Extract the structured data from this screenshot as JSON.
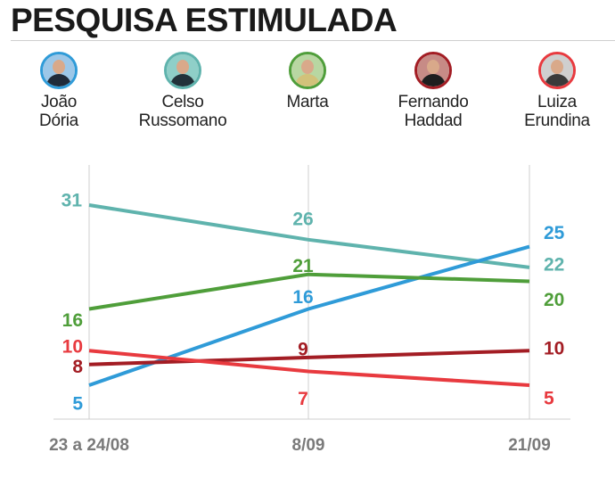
{
  "title": "PESQUISA ESTIMULADA",
  "candidates": [
    {
      "line1": "João",
      "line2": "Dória",
      "color": "#2f9bd8",
      "bg": "#9cc7e8",
      "suit": "#1f2b3a"
    },
    {
      "line1": "Celso",
      "line2": "Russomano",
      "color": "#5fb3ad",
      "bg": "#8fcfc8",
      "suit": "#22323a"
    },
    {
      "line1": "Marta",
      "line2": "",
      "color": "#4f9e3a",
      "bg": "#b8d7a2",
      "suit": "#d2c27a"
    },
    {
      "line1": "Fernando",
      "line2": "Haddad",
      "color": "#a31d24",
      "bg": "#c78b86",
      "suit": "#1e1e1e"
    },
    {
      "line1": "Luiza",
      "line2": "Erundina",
      "color": "#e83a3f",
      "bg": "#cfcfcf",
      "suit": "#3a3a3a"
    }
  ],
  "chart_data": {
    "type": "line",
    "categories": [
      "23 a 24/08",
      "8/09",
      "21/09"
    ],
    "ylim": [
      0,
      35
    ],
    "grid": "vertical",
    "series": [
      {
        "name": "Celso Russomano",
        "values": [
          31,
          26,
          22
        ],
        "color": "#5fb3ad"
      },
      {
        "name": "João Dória",
        "values": [
          5,
          16,
          25
        ],
        "color": "#2f9bd8"
      },
      {
        "name": "Marta",
        "values": [
          16,
          21,
          20
        ],
        "color": "#4f9e3a"
      },
      {
        "name": "Fernando Haddad",
        "values": [
          8,
          9,
          10
        ],
        "color": "#a31d24"
      },
      {
        "name": "Luiza Erundina",
        "values": [
          10,
          7,
          5
        ],
        "color": "#e83a3f"
      }
    ]
  }
}
